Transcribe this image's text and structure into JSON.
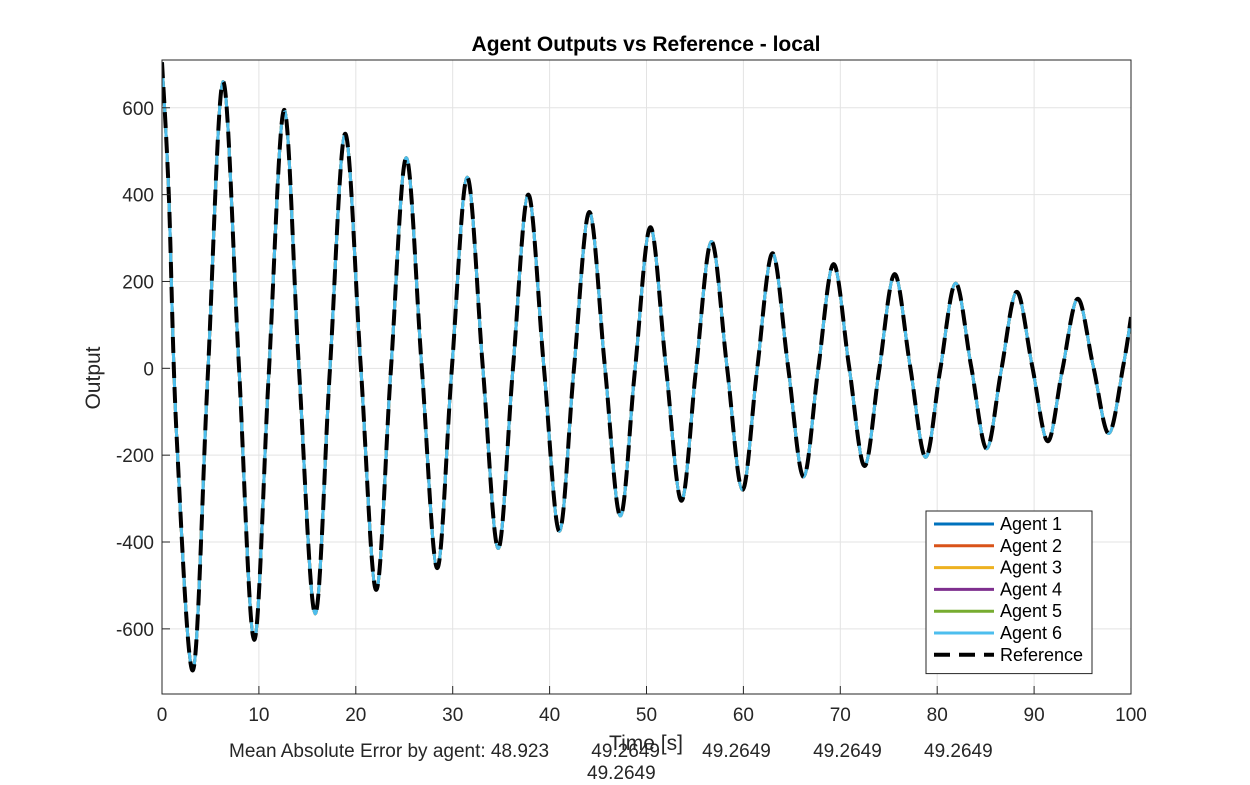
{
  "chart_data": {
    "type": "line",
    "title": "Agent Outputs vs Reference - local",
    "xlabel": "Time [s]",
    "ylabel": "Output",
    "xlim": [
      0,
      100
    ],
    "ylim": [
      -750,
      710
    ],
    "xticks": [
      0,
      10,
      20,
      30,
      40,
      50,
      60,
      70,
      80,
      90,
      100
    ],
    "yticks": [
      -600,
      -400,
      -200,
      0,
      200,
      400,
      600
    ],
    "grid": true,
    "legend_position": "bottom-right",
    "x": [
      0.0,
      0.7,
      1.5,
      3.2,
      4.7,
      6.3,
      7.9,
      9.5,
      11.0,
      12.6,
      14.1,
      15.8,
      17.3,
      18.9,
      20.5,
      22.1,
      23.6,
      25.2,
      26.8,
      28.4,
      29.9,
      31.5,
      33.1,
      34.7,
      36.2,
      37.8,
      39.4,
      41.0,
      42.5,
      44.1,
      45.7,
      47.3,
      48.8,
      50.4,
      52.0,
      53.6,
      55.1,
      56.7,
      58.3,
      59.9,
      61.4,
      63.0,
      64.6,
      66.2,
      67.7,
      69.3,
      70.9,
      72.5,
      74.0,
      75.6,
      77.2,
      78.8,
      80.3,
      81.9,
      83.5,
      85.1,
      86.6,
      88.2,
      89.8,
      91.4,
      92.9,
      94.5,
      96.1,
      97.7,
      99.2,
      100.0
    ],
    "reference": [
      705,
      400,
      -150,
      -695,
      -30,
      660,
      20,
      -625,
      -20,
      595,
      15,
      -565,
      -15,
      540,
      10,
      -510,
      -10,
      485,
      5,
      -460,
      -5,
      440,
      5,
      -415,
      -5,
      400,
      5,
      -375,
      -5,
      360,
      5,
      -340,
      -5,
      325,
      5,
      -305,
      -5,
      292,
      5,
      -280,
      -5,
      265,
      5,
      -250,
      -5,
      240,
      5,
      -225,
      -5,
      217,
      5,
      -205,
      -5,
      196,
      5,
      -185,
      -5,
      176,
      5,
      -168,
      -5,
      160,
      5,
      -150,
      5,
      118
    ],
    "series": [
      {
        "name": "Agent 1",
        "color": "#0072BD",
        "style": "solid",
        "values_ref": "reference"
      },
      {
        "name": "Agent 2",
        "color": "#D95319",
        "style": "solid",
        "values_ref": "reference"
      },
      {
        "name": "Agent 3",
        "color": "#EDB120",
        "style": "solid",
        "values_ref": "reference"
      },
      {
        "name": "Agent 4",
        "color": "#7E2F8E",
        "style": "solid",
        "values_ref": "reference"
      },
      {
        "name": "Agent 5",
        "color": "#77AC30",
        "style": "solid",
        "values_ref": "reference"
      },
      {
        "name": "Agent 6",
        "color": "#4DBEEE",
        "style": "solid",
        "values_ref": "reference"
      },
      {
        "name": "Reference",
        "color": "#000000",
        "style": "dashed",
        "values_ref": "reference"
      }
    ]
  },
  "footer": {
    "line1": "Mean Absolute Error by agent: 48.923        49.2649        49.2649        49.2649        49.2649",
    "line2": "49.2649"
  }
}
